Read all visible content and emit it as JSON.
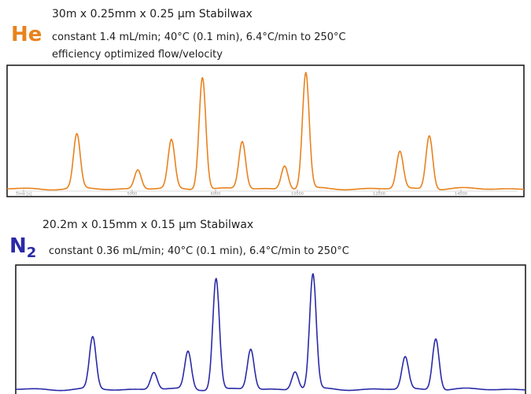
{
  "chart_data": [
    {
      "type": "line",
      "carrier_gas": "He",
      "column": "30m x 0.25mm x 0.25 µm Stabilwax",
      "conditions": "constant 1.4 mL/min;   40°C (0.1 min), 6.4°C/min to 250°C",
      "note": "efficiency optimized flow/velocity",
      "color": "#e8821e",
      "x_tick_labels": [
        "Time [s]",
        "5000",
        "6000",
        "10000",
        "12000",
        "14000"
      ],
      "series": [
        {
          "peaks": [
            {
              "x": 0.135,
              "h": 0.48
            },
            {
              "x": 0.253,
              "h": 0.17
            },
            {
              "x": 0.318,
              "h": 0.43
            },
            {
              "x": 0.378,
              "h": 1.0
            },
            {
              "x": 0.455,
              "h": 0.42
            },
            {
              "x": 0.537,
              "h": 0.21
            },
            {
              "x": 0.578,
              "h": 1.03
            },
            {
              "x": 0.76,
              "h": 0.33
            },
            {
              "x": 0.817,
              "h": 0.48
            }
          ]
        }
      ]
    },
    {
      "type": "line",
      "carrier_gas": "N",
      "carrier_gas_subscript": "2",
      "column": "20.2m x 0.15mm x 0.15 µm Stabilwax",
      "conditions": "constant 0.36 mL/min;   40°C (0.1 min), 6.4°C/min to 250°C",
      "color": "#2a2aa8",
      "series": [
        {
          "peaks": [
            {
              "x": 0.151,
              "h": 0.45
            },
            {
              "x": 0.271,
              "h": 0.15
            },
            {
              "x": 0.338,
              "h": 0.33
            },
            {
              "x": 0.393,
              "h": 0.97
            },
            {
              "x": 0.461,
              "h": 0.35
            },
            {
              "x": 0.548,
              "h": 0.16
            },
            {
              "x": 0.583,
              "h": 1.0
            },
            {
              "x": 0.764,
              "h": 0.28
            },
            {
              "x": 0.824,
              "h": 0.45
            }
          ]
        }
      ]
    }
  ]
}
